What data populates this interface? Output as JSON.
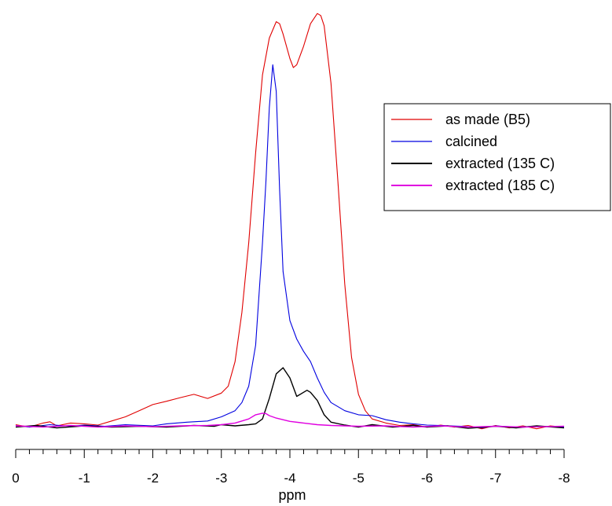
{
  "chart_data": {
    "type": "line",
    "title": "",
    "xlabel": "ppm",
    "ylabel": "",
    "xlim": [
      0,
      -8
    ],
    "ylim": [
      -0.02,
      1.02
    ],
    "x_reversed": true,
    "y_axis_shown": false,
    "grid": false,
    "legend_position": "top-right",
    "x_ticks": [
      0,
      -1,
      -2,
      -3,
      -4,
      -5,
      -6,
      -7,
      -8
    ],
    "x_tick_labels": [
      "0",
      "-1",
      "-2",
      "-3",
      "-4",
      "-5",
      "-6",
      "-7",
      "-8"
    ],
    "series": [
      {
        "name": "as made (B5)",
        "color": "#e00000",
        "points": [
          [
            0,
            0.006
          ],
          [
            -0.2,
            0.0
          ],
          [
            -0.4,
            0.01
          ],
          [
            -0.5,
            0.013
          ],
          [
            -0.6,
            0.003
          ],
          [
            -0.8,
            0.01
          ],
          [
            -1.0,
            0.008
          ],
          [
            -1.2,
            0.005
          ],
          [
            -1.4,
            0.015
          ],
          [
            -1.6,
            0.025
          ],
          [
            -1.8,
            0.04
          ],
          [
            -2.0,
            0.055
          ],
          [
            -2.2,
            0.063
          ],
          [
            -2.4,
            0.072
          ],
          [
            -2.6,
            0.08
          ],
          [
            -2.8,
            0.07
          ],
          [
            -3.0,
            0.083
          ],
          [
            -3.1,
            0.1
          ],
          [
            -3.2,
            0.16
          ],
          [
            -3.3,
            0.28
          ],
          [
            -3.4,
            0.45
          ],
          [
            -3.5,
            0.67
          ],
          [
            -3.6,
            0.86
          ],
          [
            -3.7,
            0.95
          ],
          [
            -3.8,
            0.99
          ],
          [
            -3.85,
            0.985
          ],
          [
            -3.9,
            0.96
          ],
          [
            -4.0,
            0.9
          ],
          [
            -4.05,
            0.878
          ],
          [
            -4.1,
            0.885
          ],
          [
            -4.2,
            0.93
          ],
          [
            -4.3,
            0.985
          ],
          [
            -4.4,
            1.01
          ],
          [
            -4.45,
            1.005
          ],
          [
            -4.5,
            0.98
          ],
          [
            -4.6,
            0.84
          ],
          [
            -4.7,
            0.6
          ],
          [
            -4.8,
            0.35
          ],
          [
            -4.9,
            0.17
          ],
          [
            -5.0,
            0.08
          ],
          [
            -5.1,
            0.04
          ],
          [
            -5.2,
            0.02
          ],
          [
            -5.4,
            0.01
          ],
          [
            -5.6,
            0.004
          ],
          [
            -5.8,
            0.006
          ],
          [
            -6.0,
            0.0
          ],
          [
            -6.2,
            0.005
          ],
          [
            -6.4,
            0.0
          ],
          [
            -6.6,
            0.004
          ],
          [
            -6.8,
            -0.004
          ],
          [
            -7.0,
            0.004
          ],
          [
            -7.2,
            -0.002
          ],
          [
            -7.4,
            0.003
          ],
          [
            -7.6,
            -0.004
          ],
          [
            -7.8,
            0.003
          ],
          [
            -8.0,
            0.0
          ]
        ]
      },
      {
        "name": "calcined",
        "color": "#0000e0",
        "points": [
          [
            0,
            0.004
          ],
          [
            -0.2,
            0.0
          ],
          [
            -0.5,
            0.006
          ],
          [
            -0.8,
            0.002
          ],
          [
            -1.0,
            0.005
          ],
          [
            -1.3,
            0.002
          ],
          [
            -1.6,
            0.006
          ],
          [
            -2.0,
            0.003
          ],
          [
            -2.2,
            0.008
          ],
          [
            -2.5,
            0.012
          ],
          [
            -2.8,
            0.015
          ],
          [
            -3.0,
            0.025
          ],
          [
            -3.2,
            0.04
          ],
          [
            -3.3,
            0.06
          ],
          [
            -3.4,
            0.1
          ],
          [
            -3.5,
            0.2
          ],
          [
            -3.6,
            0.45
          ],
          [
            -3.65,
            0.6
          ],
          [
            -3.7,
            0.78
          ],
          [
            -3.75,
            0.885
          ],
          [
            -3.8,
            0.82
          ],
          [
            -3.85,
            0.58
          ],
          [
            -3.9,
            0.38
          ],
          [
            -4.0,
            0.26
          ],
          [
            -4.1,
            0.215
          ],
          [
            -4.2,
            0.185
          ],
          [
            -4.3,
            0.16
          ],
          [
            -4.4,
            0.12
          ],
          [
            -4.5,
            0.085
          ],
          [
            -4.6,
            0.06
          ],
          [
            -4.8,
            0.04
          ],
          [
            -5.0,
            0.03
          ],
          [
            -5.2,
            0.028
          ],
          [
            -5.4,
            0.018
          ],
          [
            -5.6,
            0.012
          ],
          [
            -5.8,
            0.008
          ],
          [
            -6.0,
            0.005
          ],
          [
            -6.2,
            0.004
          ],
          [
            -6.5,
            0.002
          ],
          [
            -6.8,
            -0.002
          ],
          [
            -7.0,
            0.003
          ],
          [
            -7.3,
            0.0
          ],
          [
            -7.6,
            0.002
          ],
          [
            -8.0,
            0.0
          ]
        ]
      },
      {
        "name": "extracted (135 C)",
        "color": "#000000",
        "points": [
          [
            0,
            0.0
          ],
          [
            -0.3,
            0.004
          ],
          [
            -0.6,
            -0.002
          ],
          [
            -1.0,
            0.003
          ],
          [
            -1.4,
            0.0
          ],
          [
            -1.8,
            0.002
          ],
          [
            -2.2,
            0.0
          ],
          [
            -2.6,
            0.004
          ],
          [
            -2.9,
            0.002
          ],
          [
            -3.0,
            0.006
          ],
          [
            -3.2,
            0.003
          ],
          [
            -3.4,
            0.006
          ],
          [
            -3.5,
            0.008
          ],
          [
            -3.6,
            0.02
          ],
          [
            -3.7,
            0.07
          ],
          [
            -3.8,
            0.13
          ],
          [
            -3.9,
            0.145
          ],
          [
            -4.0,
            0.12
          ],
          [
            -4.1,
            0.075
          ],
          [
            -4.2,
            0.085
          ],
          [
            -4.25,
            0.09
          ],
          [
            -4.3,
            0.085
          ],
          [
            -4.4,
            0.065
          ],
          [
            -4.5,
            0.03
          ],
          [
            -4.6,
            0.012
          ],
          [
            -4.8,
            0.005
          ],
          [
            -5.0,
            0.0
          ],
          [
            -5.2,
            0.006
          ],
          [
            -5.5,
            0.0
          ],
          [
            -5.8,
            0.004
          ],
          [
            -6.0,
            0.0
          ],
          [
            -6.3,
            0.003
          ],
          [
            -6.6,
            -0.003
          ],
          [
            -7.0,
            0.002
          ],
          [
            -7.3,
            -0.002
          ],
          [
            -7.6,
            0.003
          ],
          [
            -8.0,
            -0.002
          ]
        ]
      },
      {
        "name": "extracted (185 C)",
        "color": "#e000e0",
        "points": [
          [
            0,
            0.003
          ],
          [
            -0.4,
            0.0
          ],
          [
            -0.8,
            0.004
          ],
          [
            -1.2,
            0.0
          ],
          [
            -1.6,
            0.003
          ],
          [
            -2.0,
            0.001
          ],
          [
            -2.4,
            0.003
          ],
          [
            -2.8,
            0.004
          ],
          [
            -3.0,
            0.006
          ],
          [
            -3.2,
            0.01
          ],
          [
            -3.4,
            0.02
          ],
          [
            -3.5,
            0.03
          ],
          [
            -3.6,
            0.034
          ],
          [
            -3.65,
            0.033
          ],
          [
            -3.7,
            0.028
          ],
          [
            -3.8,
            0.022
          ],
          [
            -3.9,
            0.018
          ],
          [
            -4.0,
            0.014
          ],
          [
            -4.2,
            0.01
          ],
          [
            -4.4,
            0.006
          ],
          [
            -4.6,
            0.004
          ],
          [
            -5.0,
            0.002
          ],
          [
            -5.4,
            0.003
          ],
          [
            -5.8,
            0.0
          ],
          [
            -6.2,
            0.003
          ],
          [
            -6.6,
            0.0
          ],
          [
            -7.0,
            0.002
          ],
          [
            -7.4,
            0.0
          ],
          [
            -8.0,
            0.002
          ]
        ]
      }
    ]
  }
}
